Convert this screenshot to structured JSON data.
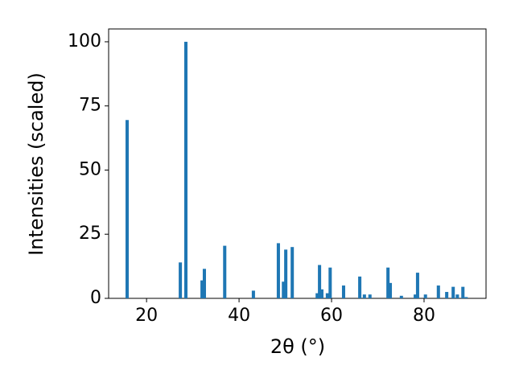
{
  "chart_data": {
    "type": "bar",
    "xlabel": "2θ (°)",
    "ylabel": "Intensities (scaled)",
    "x": [
      15.8,
      27.3,
      28.5,
      32.0,
      32.5,
      36.9,
      43.1,
      48.5,
      49.6,
      50.1,
      51.5,
      56.9,
      57.4,
      57.9,
      59.1,
      59.7,
      62.6,
      66.1,
      67.1,
      68.3,
      72.2,
      72.7,
      75.1,
      78.1,
      78.6,
      80.3,
      83.1,
      84.9,
      86.3,
      87.2,
      88.4,
      89.1
    ],
    "values": [
      69.5,
      14,
      100,
      7,
      11.5,
      20.5,
      3,
      21.5,
      6.5,
      19,
      20,
      2,
      13,
      3.5,
      2,
      12,
      5,
      8.5,
      1.5,
      1.5,
      12,
      6,
      1,
      1.5,
      10,
      1.5,
      5,
      2.5,
      4.5,
      1.5,
      4.5,
      0.5
    ],
    "color": "#1f77b4",
    "xlim": [
      11.8,
      93.4
    ],
    "ylim": [
      0,
      105
    ],
    "xticks": [
      20,
      40,
      60,
      80
    ],
    "yticks": [
      0,
      25,
      50,
      75,
      100
    ]
  }
}
